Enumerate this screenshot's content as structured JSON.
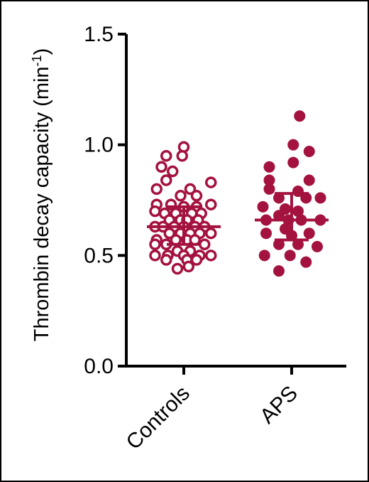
{
  "chart_data": {
    "type": "scatter",
    "subtype": "dot-plot-with-mean-and-sd",
    "ylabel": "Thrombin decay capacity (min",
    "ylabel_superscript": "-1",
    "ylabel_suffix": ")",
    "ylim": [
      0.0,
      1.5
    ],
    "yticks": [
      0.0,
      0.5,
      1.0,
      1.5
    ],
    "ytick_labels": [
      "0.0",
      "0.5",
      "1.0",
      "1.5"
    ],
    "categories": [
      "Controls",
      "APS"
    ],
    "grid": false,
    "legend": "none",
    "colors": {
      "marker": "#a4123f",
      "axis": "#000000"
    },
    "series": [
      {
        "category": "Controls",
        "marker": "open-circle",
        "mean": 0.63,
        "sd_low": 0.55,
        "sd_high": 0.72,
        "points": [
          {
            "x": 0.0,
            "y": 0.99
          },
          {
            "x": -0.55,
            "y": 0.95
          },
          {
            "x": -0.05,
            "y": 0.95
          },
          {
            "x": -0.7,
            "y": 0.9
          },
          {
            "x": -0.35,
            "y": 0.88
          },
          {
            "x": -0.55,
            "y": 0.84
          },
          {
            "x": 0.85,
            "y": 0.83
          },
          {
            "x": -0.85,
            "y": 0.8
          },
          {
            "x": 0.2,
            "y": 0.8
          },
          {
            "x": -0.1,
            "y": 0.77
          },
          {
            "x": 0.4,
            "y": 0.77
          },
          {
            "x": -0.85,
            "y": 0.73
          },
          {
            "x": -0.4,
            "y": 0.73
          },
          {
            "x": 0.85,
            "y": 0.73
          },
          {
            "x": 0.0,
            "y": 0.72
          },
          {
            "x": 0.4,
            "y": 0.72
          },
          {
            "x": -0.9,
            "y": 0.7
          },
          {
            "x": -0.6,
            "y": 0.69
          },
          {
            "x": -0.25,
            "y": 0.69
          },
          {
            "x": 0.25,
            "y": 0.69
          },
          {
            "x": 0.55,
            "y": 0.69
          },
          {
            "x": -0.45,
            "y": 0.66
          },
          {
            "x": -0.1,
            "y": 0.66
          },
          {
            "x": 0.1,
            "y": 0.66
          },
          {
            "x": 0.45,
            "y": 0.66
          },
          {
            "x": -0.9,
            "y": 0.63
          },
          {
            "x": -0.65,
            "y": 0.63
          },
          {
            "x": -0.3,
            "y": 0.63
          },
          {
            "x": 0.0,
            "y": 0.63
          },
          {
            "x": 0.35,
            "y": 0.63
          },
          {
            "x": 0.65,
            "y": 0.63
          },
          {
            "x": -0.45,
            "y": 0.6
          },
          {
            "x": -0.1,
            "y": 0.6
          },
          {
            "x": 0.2,
            "y": 0.6
          },
          {
            "x": 0.5,
            "y": 0.6
          },
          {
            "x": 0.85,
            "y": 0.6
          },
          {
            "x": -0.85,
            "y": 0.57
          },
          {
            "x": -0.25,
            "y": 0.57
          },
          {
            "x": 0.1,
            "y": 0.57
          },
          {
            "x": 0.35,
            "y": 0.57
          },
          {
            "x": -0.9,
            "y": 0.55
          },
          {
            "x": -0.55,
            "y": 0.55
          },
          {
            "x": 0.65,
            "y": 0.55
          },
          {
            "x": -0.2,
            "y": 0.52
          },
          {
            "x": 0.2,
            "y": 0.52
          },
          {
            "x": -0.9,
            "y": 0.5
          },
          {
            "x": -0.5,
            "y": 0.5
          },
          {
            "x": 0.0,
            "y": 0.5
          },
          {
            "x": 0.5,
            "y": 0.5
          },
          {
            "x": 0.85,
            "y": 0.5
          },
          {
            "x": -0.55,
            "y": 0.48
          },
          {
            "x": 0.1,
            "y": 0.48
          },
          {
            "x": 0.4,
            "y": 0.48
          },
          {
            "x": -0.2,
            "y": 0.44
          },
          {
            "x": 0.15,
            "y": 0.45
          }
        ]
      },
      {
        "category": "APS",
        "marker": "filled-circle",
        "mean": 0.66,
        "sd_low": 0.57,
        "sd_high": 0.78,
        "points": [
          {
            "x": 0.25,
            "y": 1.13
          },
          {
            "x": 0.05,
            "y": 1.0
          },
          {
            "x": 0.55,
            "y": 0.97
          },
          {
            "x": -0.7,
            "y": 0.9
          },
          {
            "x": 0.05,
            "y": 0.92
          },
          {
            "x": -0.7,
            "y": 0.84
          },
          {
            "x": 0.55,
            "y": 0.84
          },
          {
            "x": -0.7,
            "y": 0.8
          },
          {
            "x": 0.2,
            "y": 0.79
          },
          {
            "x": -0.4,
            "y": 0.76
          },
          {
            "x": 0.45,
            "y": 0.76
          },
          {
            "x": 0.9,
            "y": 0.76
          },
          {
            "x": -0.9,
            "y": 0.72
          },
          {
            "x": -0.2,
            "y": 0.71
          },
          {
            "x": -0.4,
            "y": 0.68
          },
          {
            "x": 0.2,
            "y": 0.7
          },
          {
            "x": -0.8,
            "y": 0.66
          },
          {
            "x": -0.1,
            "y": 0.66
          },
          {
            "x": 0.3,
            "y": 0.66
          },
          {
            "x": 0.9,
            "y": 0.66
          },
          {
            "x": -0.2,
            "y": 0.62
          },
          {
            "x": -0.8,
            "y": 0.6
          },
          {
            "x": 0.0,
            "y": 0.59
          },
          {
            "x": 0.55,
            "y": 0.6
          },
          {
            "x": -0.4,
            "y": 0.55
          },
          {
            "x": 0.2,
            "y": 0.55
          },
          {
            "x": 0.8,
            "y": 0.54
          },
          {
            "x": -0.85,
            "y": 0.5
          },
          {
            "x": -0.05,
            "y": 0.5
          },
          {
            "x": 0.45,
            "y": 0.47
          },
          {
            "x": -0.4,
            "y": 0.43
          }
        ]
      }
    ]
  }
}
